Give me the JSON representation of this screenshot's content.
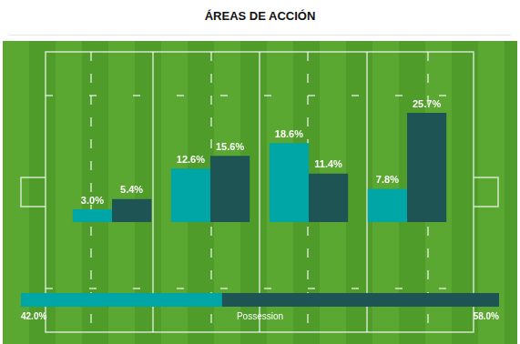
{
  "chart_data": [
    {
      "type": "bar",
      "title": "ÁREAS DE ACCIÓN",
      "categories": [
        null,
        null,
        null,
        null
      ],
      "series": [
        {
          "color": "#00a5a5",
          "values": [
            3.0,
            12.6,
            18.6,
            7.8
          ],
          "value_labels": [
            "3.0%",
            "12.6%",
            "18.6%",
            "7.8%"
          ]
        },
        {
          "color": "#1e5454",
          "values": [
            5.4,
            15.6,
            11.4,
            25.7
          ],
          "value_labels": [
            "5.4%",
            "15.6%",
            "11.4%",
            "25.7%"
          ]
        }
      ],
      "ylim": [
        0,
        30
      ],
      "grid": false,
      "tick_labels": false,
      "data_labels": true
    },
    {
      "type": "bar",
      "orientation": "horizontal",
      "stacked": true,
      "xlabel": "Possession",
      "categories": [
        null
      ],
      "series": [
        {
          "color": "#00a5a5",
          "values": [
            42.0
          ],
          "value_labels": [
            "42.0%"
          ]
        },
        {
          "color": "#1e5454",
          "values": [
            58.0
          ],
          "value_labels": [
            "58.0%"
          ]
        }
      ],
      "xlim": [
        0,
        100
      ],
      "grid": false,
      "tick_labels": false,
      "data_labels": true
    }
  ]
}
